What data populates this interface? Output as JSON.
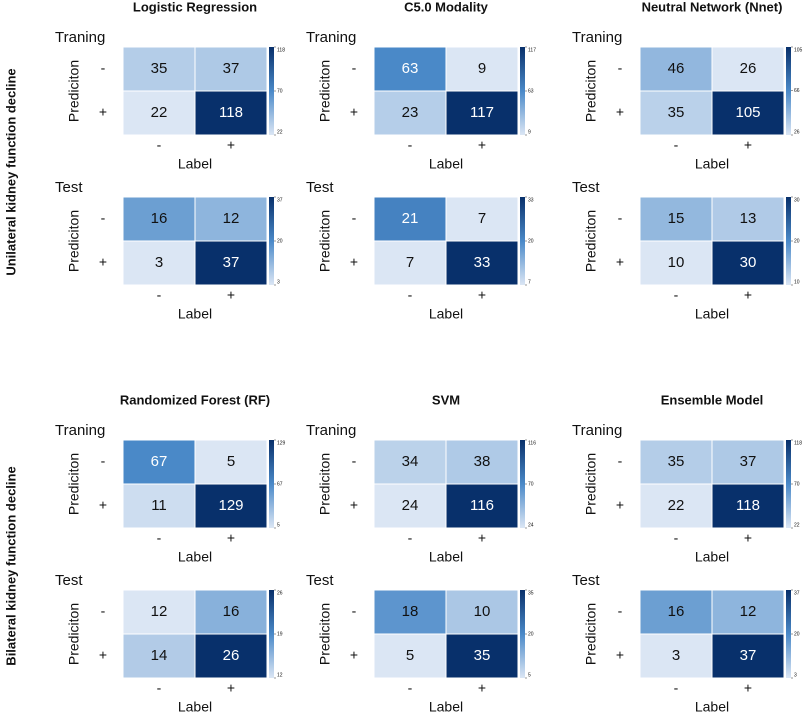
{
  "row_labels": [
    "Unilateral kidney function decline",
    "Bilateral kidney function decline"
  ],
  "chart_data": [
    {
      "type": "heatmap",
      "title": "Logistic Regression",
      "subtitle": "Traning",
      "x_label": "Label",
      "y_label": "Prediciton",
      "x_categories": [
        "-",
        "+"
      ],
      "y_categories": [
        "-",
        "+"
      ],
      "values": [
        [
          35,
          37
        ],
        [
          22,
          118
        ]
      ],
      "clim": [
        22,
        118
      ],
      "colorbar_ticks": [
        22,
        70,
        118
      ],
      "colormap": [
        "#dbe6f4",
        "#4a89c8",
        "#08306b"
      ]
    },
    {
      "type": "heatmap",
      "subtitle": "Test",
      "x_label": "Label",
      "y_label": "Prediciton",
      "x_categories": [
        "-",
        "+"
      ],
      "y_categories": [
        "-",
        "+"
      ],
      "values": [
        [
          16,
          12
        ],
        [
          3,
          37
        ]
      ],
      "clim": [
        3,
        37
      ],
      "colorbar_ticks": [
        3,
        20,
        37
      ],
      "colormap": [
        "#dbe6f4",
        "#4a89c8",
        "#08306b"
      ]
    },
    {
      "type": "heatmap",
      "title": "C5.0 Modality",
      "subtitle": "Traning",
      "x_label": "Label",
      "y_label": "Prediciton",
      "x_categories": [
        "-",
        "+"
      ],
      "y_categories": [
        "-",
        "+"
      ],
      "values": [
        [
          63,
          9
        ],
        [
          23,
          117
        ]
      ],
      "clim": [
        9,
        117
      ],
      "colorbar_ticks": [
        9,
        63,
        117
      ],
      "colormap": [
        "#dbe6f4",
        "#4a89c8",
        "#08306b"
      ]
    },
    {
      "type": "heatmap",
      "subtitle": "Test",
      "x_label": "Label",
      "y_label": "Prediciton",
      "x_categories": [
        "-",
        "+"
      ],
      "y_categories": [
        "-",
        "+"
      ],
      "values": [
        [
          21,
          7
        ],
        [
          7,
          33
        ]
      ],
      "clim": [
        7,
        33
      ],
      "colorbar_ticks": [
        7,
        20,
        33
      ],
      "colormap": [
        "#dbe6f4",
        "#4a89c8",
        "#08306b"
      ]
    },
    {
      "type": "heatmap",
      "title": "Neutral Network (Nnet)",
      "subtitle": "Traning",
      "x_label": "Label",
      "y_label": "Prediciton",
      "x_categories": [
        "-",
        "+"
      ],
      "y_categories": [
        "-",
        "+"
      ],
      "values": [
        [
          46,
          26
        ],
        [
          35,
          105
        ]
      ],
      "clim": [
        26,
        105
      ],
      "colorbar_ticks": [
        26,
        66,
        105
      ],
      "colormap": [
        "#dbe6f4",
        "#4a89c8",
        "#08306b"
      ]
    },
    {
      "type": "heatmap",
      "subtitle": "Test",
      "x_label": "Label",
      "y_label": "Prediciton",
      "x_categories": [
        "-",
        "+"
      ],
      "y_categories": [
        "-",
        "+"
      ],
      "values": [
        [
          15,
          13
        ],
        [
          10,
          30
        ]
      ],
      "clim": [
        10,
        30
      ],
      "colorbar_ticks": [
        10,
        20,
        30
      ],
      "colormap": [
        "#dbe6f4",
        "#4a89c8",
        "#08306b"
      ]
    },
    {
      "type": "heatmap",
      "title": "Randomized Forest (RF)",
      "subtitle": "Traning",
      "x_label": "Label",
      "y_label": "Prediciton",
      "x_categories": [
        "-",
        "+"
      ],
      "y_categories": [
        "-",
        "+"
      ],
      "values": [
        [
          67,
          5
        ],
        [
          11,
          129
        ]
      ],
      "clim": [
        5,
        129
      ],
      "colorbar_ticks": [
        5,
        67,
        129
      ],
      "colormap": [
        "#dbe6f4",
        "#4a89c8",
        "#08306b"
      ]
    },
    {
      "type": "heatmap",
      "subtitle": "Test",
      "x_label": "Label",
      "y_label": "Prediciton",
      "x_categories": [
        "-",
        "+"
      ],
      "y_categories": [
        "-",
        "+"
      ],
      "values": [
        [
          12,
          16
        ],
        [
          14,
          26
        ]
      ],
      "clim": [
        12,
        26
      ],
      "colorbar_ticks": [
        12,
        19,
        26
      ],
      "colormap": [
        "#dbe6f4",
        "#4a89c8",
        "#08306b"
      ]
    },
    {
      "type": "heatmap",
      "title": "SVM",
      "subtitle": "Traning",
      "x_label": "Label",
      "y_label": "Prediciton",
      "x_categories": [
        "-",
        "+"
      ],
      "y_categories": [
        "-",
        "+"
      ],
      "values": [
        [
          34,
          38
        ],
        [
          24,
          116
        ]
      ],
      "clim": [
        24,
        116
      ],
      "colorbar_ticks": [
        24,
        70,
        116
      ],
      "colormap": [
        "#dbe6f4",
        "#4a89c8",
        "#08306b"
      ]
    },
    {
      "type": "heatmap",
      "subtitle": "Test",
      "x_label": "Label",
      "y_label": "Prediciton",
      "x_categories": [
        "-",
        "+"
      ],
      "y_categories": [
        "-",
        "+"
      ],
      "values": [
        [
          18,
          10
        ],
        [
          5,
          35
        ]
      ],
      "clim": [
        5,
        35
      ],
      "colorbar_ticks": [
        5,
        20,
        35
      ],
      "colormap": [
        "#dbe6f4",
        "#4a89c8",
        "#08306b"
      ]
    },
    {
      "type": "heatmap",
      "title": "Ensemble Model",
      "subtitle": "Traning",
      "x_label": "Label",
      "y_label": "Prediciton",
      "x_categories": [
        "-",
        "+"
      ],
      "y_categories": [
        "-",
        "+"
      ],
      "values": [
        [
          35,
          37
        ],
        [
          22,
          118
        ]
      ],
      "clim": [
        22,
        118
      ],
      "colorbar_ticks": [
        22,
        70,
        118
      ],
      "colormap": [
        "#dbe6f4",
        "#4a89c8",
        "#08306b"
      ]
    },
    {
      "type": "heatmap",
      "subtitle": "Test",
      "x_label": "Label",
      "y_label": "Prediciton",
      "x_categories": [
        "-",
        "+"
      ],
      "y_categories": [
        "-",
        "+"
      ],
      "values": [
        [
          16,
          12
        ],
        [
          3,
          37
        ]
      ],
      "clim": [
        3,
        37
      ],
      "colorbar_ticks": [
        3,
        20,
        37
      ],
      "colormap": [
        "#dbe6f4",
        "#4a89c8",
        "#08306b"
      ]
    }
  ]
}
